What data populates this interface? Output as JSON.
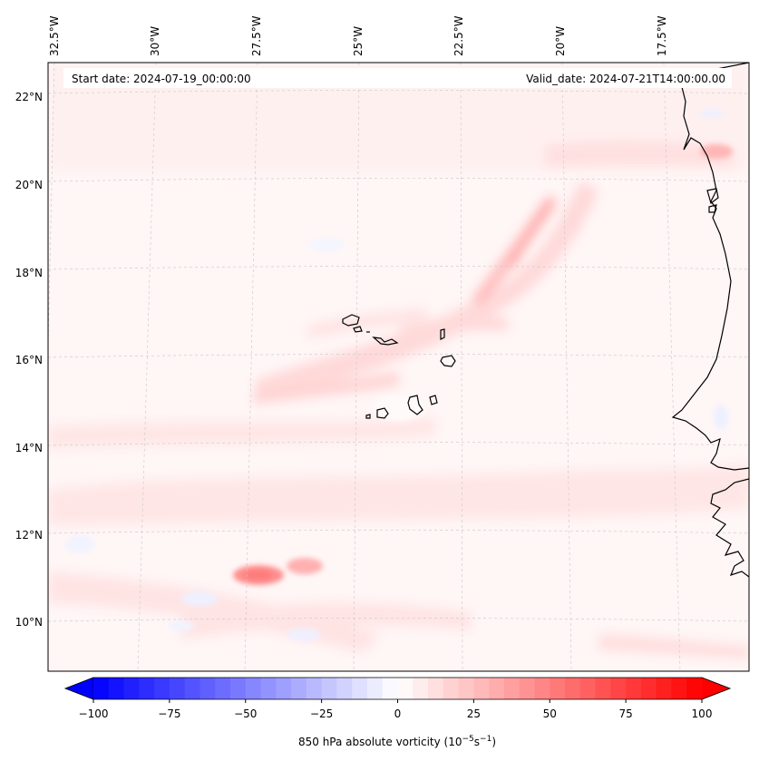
{
  "header": {
    "start_date": "Start date: 2024-07-19_00:00:00",
    "valid_date": "Valid_date: 2024-07-21T14:00:00.00"
  },
  "longitude_labels": [
    "32.5°W",
    "30°W",
    "27.5°W",
    "25°W",
    "22.5°W",
    "20°W",
    "17.5°W"
  ],
  "latitude_labels": [
    "22°N",
    "20°N",
    "18°N",
    "16°N",
    "14°N",
    "12°N",
    "10°N"
  ],
  "colorbar": {
    "ticks": [
      "−100",
      "−75",
      "−50",
      "−25",
      "0",
      "25",
      "50",
      "75",
      "100"
    ],
    "label": "850 hPa absolute vorticity (10",
    "label_exp1": "−5",
    "label_mid": "s",
    "label_exp2": "−1",
    "label_end": ")",
    "min": -100,
    "max": 100,
    "low_color": "#0000ff",
    "high_color": "#ff0000",
    "mid_color": "#ffffff"
  }
}
